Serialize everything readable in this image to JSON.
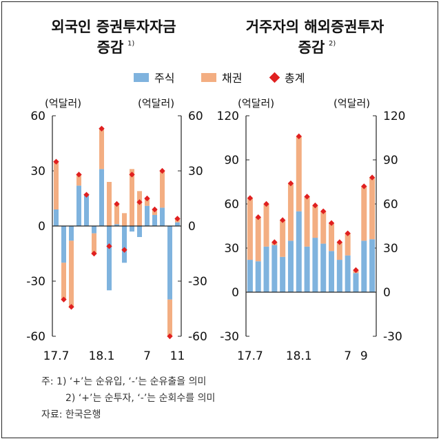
{
  "colors": {
    "stock": "#7fb3de",
    "bond": "#f3ae82",
    "total": "#e02020",
    "axis": "#222222"
  },
  "legend": {
    "stock": "주식",
    "bond": "채권",
    "total": "총계"
  },
  "unit_label": "(억달러)",
  "notes": {
    "line1": "주: 1) ‘+’는 순유입, ‘-’는 순유출을 의미",
    "line2": "2) ‘+’는 순투자, ‘-’는 순회수를 의미",
    "source": "자료: 한국은행"
  },
  "chart_data": [
    {
      "type": "bar",
      "title_line1": "외국인 증권투자자금",
      "title_line2": "증감",
      "title_sup": "1)",
      "ylim": [
        -60,
        60
      ],
      "yticks": [
        "60",
        "30",
        "0",
        "-30",
        "-60"
      ],
      "ytick_values": [
        60,
        30,
        0,
        -30,
        -60
      ],
      "xtick_labels": [
        {
          "index": 0,
          "label": "17.7"
        },
        {
          "index": 6,
          "label": "18.1"
        },
        {
          "index": 12,
          "label": "7"
        },
        {
          "index": 16,
          "label": "11"
        }
      ],
      "series": [
        {
          "name": "주식",
          "values": [
            9,
            -20,
            -8,
            22,
            17,
            -4,
            31,
            -35,
            1,
            -20,
            -3,
            -6,
            11,
            6,
            10,
            -40,
            2
          ]
        },
        {
          "name": "채권",
          "values": [
            26,
            -20,
            -36,
            6,
            0,
            -11,
            22,
            24,
            11,
            7,
            31,
            19,
            4,
            3,
            20,
            -20,
            2
          ]
        },
        {
          "name": "총계",
          "values": [
            35,
            -40,
            -44,
            28,
            17,
            -15,
            53,
            -11,
            12,
            -13,
            28,
            13,
            15,
            9,
            30,
            -60,
            4
          ]
        }
      ]
    },
    {
      "type": "bar",
      "title_line1": "거주자의 해외증권투자",
      "title_line2": "증감",
      "title_sup": "2)",
      "ylim": [
        -30,
        120
      ],
      "yticks": [
        "120",
        "90",
        "60",
        "30",
        "0",
        "-30"
      ],
      "ytick_values": [
        120,
        90,
        60,
        30,
        0,
        -30
      ],
      "xtick_labels": [
        {
          "index": 0,
          "label": "17.7"
        },
        {
          "index": 6,
          "label": "18.1"
        },
        {
          "index": 12,
          "label": "7"
        },
        {
          "index": 14,
          "label": "9"
        }
      ],
      "series": [
        {
          "name": "주식",
          "values": [
            22,
            21,
            31,
            32,
            24,
            35,
            55,
            31,
            37,
            33,
            28,
            22,
            25,
            13,
            35,
            36
          ]
        },
        {
          "name": "채권",
          "values": [
            42,
            30,
            29,
            2,
            25,
            39,
            51,
            34,
            22,
            22,
            19,
            12,
            15,
            2,
            37,
            42
          ]
        },
        {
          "name": "총계",
          "values": [
            64,
            51,
            60,
            34,
            49,
            74,
            106,
            65,
            59,
            55,
            47,
            34,
            40,
            15,
            72,
            78
          ]
        }
      ]
    }
  ]
}
